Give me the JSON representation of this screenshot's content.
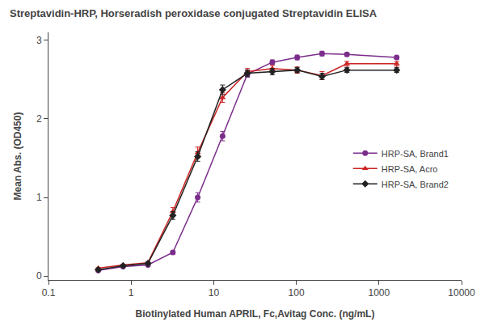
{
  "chart_data": {
    "type": "line",
    "title": "Streptavidin-HRP, Horseradish peroxidase conjugated Streptavidin ELISA",
    "x_label": "Biotinylated Human APRIL, Fc,Avitag Conc. (ng/mL)",
    "y_label": "Mean Abs. (OD450)",
    "log": "x",
    "xlim": [
      0.1,
      10000
    ],
    "xticks": [
      0.1,
      1,
      10,
      100,
      1000,
      10000
    ],
    "ylim": [
      -0.05,
      3.1
    ],
    "yticks": [
      0,
      1,
      2,
      3
    ],
    "grid": false,
    "legend": "right",
    "x": [
      0.4,
      0.8,
      1.6,
      3.2,
      6.4,
      12.8,
      25.6,
      51.2,
      102.4,
      204.8,
      409.6,
      1638.4
    ],
    "series": [
      {
        "name": "HRP-SA, Brand1",
        "color": "#7B2D8B",
        "marker": "circle",
        "values": [
          0.07,
          0.12,
          0.14,
          0.3,
          1.0,
          1.78,
          2.57,
          2.72,
          2.78,
          2.83,
          2.82,
          2.78
        ],
        "yerr": [
          0.005,
          0.005,
          0.01,
          0.02,
          0.06,
          0.06,
          0.04,
          0.03,
          0.03,
          0.03,
          0.02,
          0.02
        ]
      },
      {
        "name": "HRP-SA, Acro",
        "color": "#CC2222",
        "marker": "triangle",
        "values": [
          0.1,
          0.14,
          0.17,
          0.82,
          1.57,
          2.27,
          2.6,
          2.64,
          2.62,
          2.55,
          2.7,
          2.7
        ],
        "yerr": [
          0.005,
          0.01,
          0.01,
          0.05,
          0.07,
          0.06,
          0.04,
          0.04,
          0.04,
          0.05,
          0.03,
          0.03
        ]
      },
      {
        "name": "HRP-SA, Brand2",
        "color": "#222222",
        "marker": "diamond",
        "values": [
          0.08,
          0.13,
          0.16,
          0.77,
          1.52,
          2.37,
          2.58,
          2.6,
          2.62,
          2.54,
          2.62,
          2.62
        ],
        "yerr": [
          0.005,
          0.01,
          0.01,
          0.05,
          0.06,
          0.06,
          0.04,
          0.04,
          0.03,
          0.04,
          0.03,
          0.03
        ]
      }
    ]
  }
}
